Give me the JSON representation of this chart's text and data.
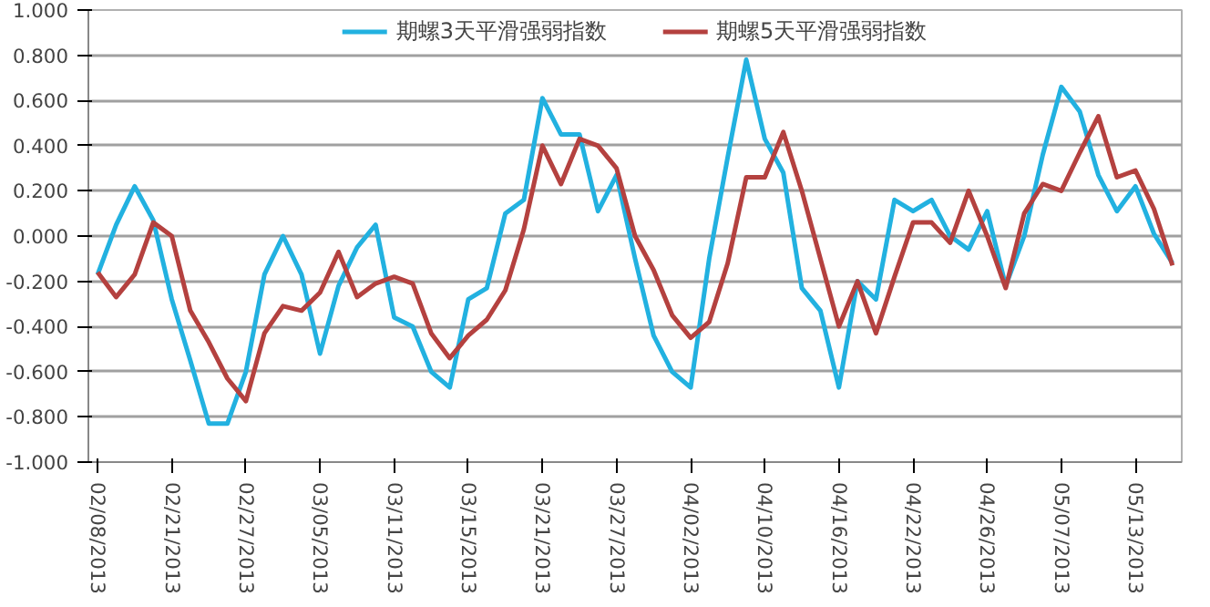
{
  "chart_data": {
    "type": "line",
    "categories": [
      "02/08/2013",
      null,
      null,
      null,
      "02/21/2013",
      null,
      null,
      null,
      "02/27/2013",
      null,
      null,
      null,
      "03/05/2013",
      null,
      null,
      null,
      "03/11/2013",
      null,
      null,
      null,
      "03/15/2013",
      null,
      null,
      null,
      "03/21/2013",
      null,
      null,
      null,
      "03/27/2013",
      null,
      null,
      null,
      "04/02/2013",
      null,
      null,
      null,
      "04/10/2013",
      null,
      null,
      null,
      "04/16/2013",
      null,
      null,
      null,
      "04/22/2013",
      null,
      null,
      null,
      "04/26/2013",
      null,
      null,
      null,
      "05/07/2013",
      null,
      null,
      null,
      "05/13/2013",
      null,
      null
    ],
    "series": [
      {
        "name": "期螺3天平滑强弱指数",
        "color": "#22b1e0",
        "values": [
          -0.17,
          0.05,
          0.22,
          0.07,
          -0.28,
          -0.55,
          -0.83,
          -0.83,
          -0.6,
          -0.17,
          0.0,
          -0.17,
          -0.52,
          -0.22,
          -0.05,
          0.05,
          -0.36,
          -0.4,
          -0.6,
          -0.67,
          -0.28,
          -0.23,
          0.1,
          0.16,
          0.61,
          0.45,
          0.45,
          0.11,
          0.27,
          -0.1,
          -0.44,
          -0.6,
          -0.67,
          -0.1,
          0.35,
          0.78,
          0.43,
          0.28,
          -0.23,
          -0.33,
          -0.67,
          -0.2,
          -0.28,
          0.16,
          0.11,
          0.16,
          0.0,
          -0.06,
          0.11,
          -0.22,
          0.0,
          0.36,
          0.66,
          0.55,
          0.27,
          0.11,
          0.22,
          0.01,
          -0.12
        ]
      },
      {
        "name": "期螺5天平滑强弱指数",
        "color": "#b4413f",
        "values": [
          -0.16,
          -0.27,
          -0.17,
          0.06,
          0.0,
          -0.33,
          -0.47,
          -0.63,
          -0.73,
          -0.43,
          -0.31,
          -0.33,
          -0.25,
          -0.07,
          -0.27,
          -0.21,
          -0.18,
          -0.21,
          -0.43,
          -0.54,
          -0.44,
          -0.37,
          -0.24,
          0.03,
          0.4,
          0.23,
          0.43,
          0.4,
          0.3,
          0.0,
          -0.15,
          -0.35,
          -0.45,
          -0.38,
          -0.12,
          0.26,
          0.26,
          0.46,
          0.2,
          -0.1,
          -0.4,
          -0.2,
          -0.43,
          -0.18,
          0.06,
          0.06,
          -0.03,
          0.2,
          0.0,
          -0.23,
          0.1,
          0.23,
          0.2,
          0.37,
          0.53,
          0.26,
          0.29,
          0.12,
          -0.13
        ]
      }
    ],
    "ylim": [
      -1.0,
      1.0
    ],
    "yticks": [
      {
        "value": 1.0,
        "label": "1.000"
      },
      {
        "value": 0.8,
        "label": "0.800"
      },
      {
        "value": 0.6,
        "label": "0.600"
      },
      {
        "value": 0.4,
        "label": "0.400"
      },
      {
        "value": 0.2,
        "label": "0.200"
      },
      {
        "value": 0.0,
        "label": "0.000"
      },
      {
        "value": -0.2,
        "label": "-0.200"
      },
      {
        "value": -0.4,
        "label": "-0.400"
      },
      {
        "value": -0.6,
        "label": "-0.600"
      },
      {
        "value": -0.8,
        "label": "-0.800"
      },
      {
        "value": -1.0,
        "label": "-1.000"
      }
    ],
    "grid": "y",
    "legend": "top",
    "marker": "none",
    "line_style": "solid"
  }
}
